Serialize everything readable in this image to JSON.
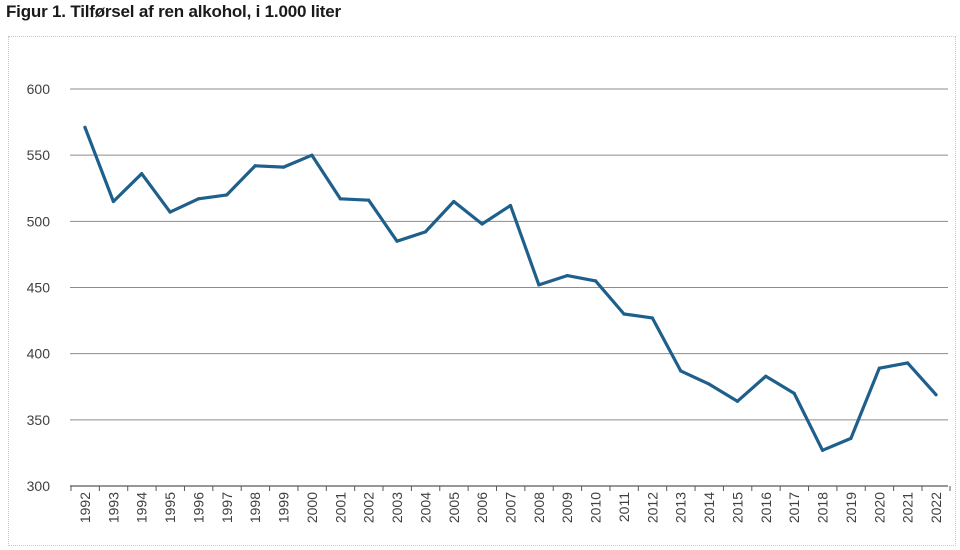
{
  "title": "Figur 1. Tilførsel af ren alkohol, i 1.000 liter",
  "chart_data": {
    "type": "line",
    "title": "Figur 1. Tilførsel af ren alkohol, i 1.000 liter",
    "xlabel": "",
    "ylabel": "",
    "ylim": [
      300,
      600
    ],
    "yticks": [
      300,
      350,
      400,
      450,
      500,
      550,
      600
    ],
    "grid": true,
    "legend": "none",
    "categories": [
      "1992",
      "1993",
      "1994",
      "1995",
      "1996",
      "1997",
      "1998",
      "1999",
      "2000",
      "2001",
      "2002",
      "2003",
      "2004",
      "2005",
      "2006",
      "2007",
      "2008",
      "2009",
      "2010",
      "2011",
      "2012",
      "2013",
      "2014",
      "2015",
      "2016",
      "2017",
      "2018",
      "2019",
      "2020",
      "2021",
      "2022"
    ],
    "series": [
      {
        "color": "#1f5f8b",
        "values": [
          571,
          515,
          536,
          507,
          517,
          520,
          542,
          541,
          550,
          517,
          516,
          485,
          492,
          515,
          498,
          512,
          452,
          459,
          455,
          430,
          427,
          387,
          377,
          364,
          383,
          370,
          327,
          336,
          389,
          393,
          369
        ]
      }
    ],
    "colors": {
      "line": "#1f5f8b",
      "grid": "#8c8c8c",
      "axis": "#595959",
      "text": "#404040"
    }
  }
}
